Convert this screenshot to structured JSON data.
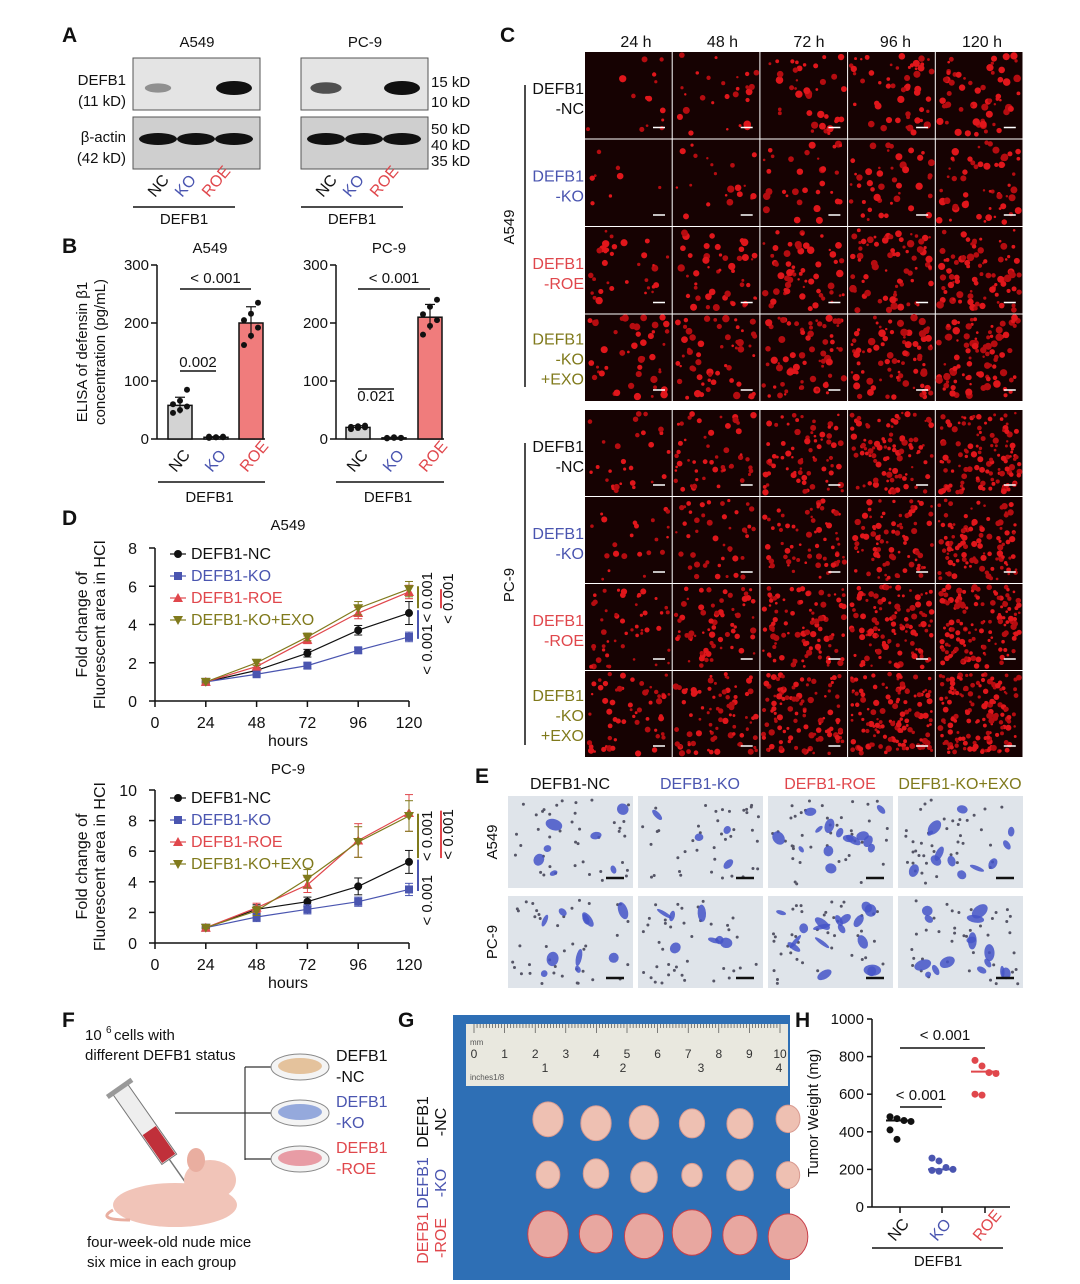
{
  "panels": {
    "A": "A",
    "B": "B",
    "C": "C",
    "D": "D",
    "E": "E",
    "F": "F",
    "G": "G",
    "H": "H"
  },
  "colors": {
    "nc": "#111111",
    "ko": "#4a55b0",
    "roe": "#e0474c",
    "exo": "#807a1c",
    "bar_nc": "#d3d3d3",
    "bar_ko": "#b9c4e6",
    "bar_roe": "#f07c7c"
  },
  "blot": {
    "cell_lines": [
      "A549",
      "PC-9"
    ],
    "rows": [
      {
        "name": "DEFB1",
        "size": "(11 kD)"
      },
      {
        "name": "β-actin",
        "size": "(42 kD)"
      }
    ],
    "markers": [
      "15 kD",
      "10 kD",
      "50 kD",
      "40 kD",
      "35 kD"
    ],
    "lanes": [
      "NC",
      "KO",
      "ROE"
    ],
    "group": "DEFB1"
  },
  "fluor": {
    "times": [
      "24 h",
      "48 h",
      "72 h",
      "96 h",
      "120 h"
    ],
    "cell_lines": [
      "A549",
      "PC-9"
    ],
    "rows": [
      [
        "DEFB1",
        "-NC"
      ],
      [
        "DEFB1",
        "-KO"
      ],
      [
        "DEFB1",
        "-ROE"
      ],
      [
        "DEFB1",
        "-KO",
        "+EXO"
      ]
    ]
  },
  "invasion": {
    "columns": [
      "DEFB1-NC",
      "DEFB1-KO",
      "DEFB1-ROE",
      "DEFB1-KO+EXO"
    ],
    "rows": [
      "A549",
      "PC-9"
    ]
  },
  "schematic": {
    "cells_line1": "10",
    "cells_sup": "6",
    "cells_line1_rest": " cells with",
    "cells_line2": "different DEFB1 status",
    "groups": [
      [
        "DEFB1",
        "-NC"
      ],
      [
        "DEFB1",
        "-KO"
      ],
      [
        "DEFB1",
        "-ROE"
      ]
    ],
    "mice_line1": "four-week-old nude mice",
    "mice_line2": "six mice in each group"
  },
  "photo": {
    "ruler_cm": [
      "0",
      "1",
      "2",
      "3",
      "4",
      "5",
      "6",
      "7",
      "8",
      "9",
      "10"
    ],
    "ruler_in": [
      "1",
      "2",
      "3",
      "4"
    ],
    "ruler_mm": "mm",
    "ruler_inch": "inches1/8",
    "rows": [
      [
        "DEFB1",
        "-NC"
      ],
      [
        "DEFB1",
        "-KO"
      ],
      [
        "DEFB1",
        "-ROE"
      ]
    ]
  },
  "chart_data": [
    {
      "id": "B-A549",
      "type": "bar",
      "title": "A549",
      "ylabel": [
        "ELISA of defensin β1",
        "concentration (pg/mL)"
      ],
      "categories": [
        "NC",
        "KO",
        "ROE"
      ],
      "group_label": "DEFB1",
      "ylim": [
        0,
        300
      ],
      "yticks": [
        "0",
        "100",
        "200",
        "300"
      ],
      "means": [
        58,
        3,
        200
      ],
      "sd": [
        14,
        1,
        28
      ],
      "points": [
        [
          45,
          50,
          56,
          60,
          66,
          85
        ],
        [
          2,
          3,
          3,
          4,
          3,
          4
        ],
        [
          162,
          178,
          192,
          205,
          216,
          235
        ]
      ],
      "comparisons": [
        {
          "pair": [
            "NC",
            "KO"
          ],
          "p": "0.002"
        },
        {
          "pair": [
            "NC",
            "ROE"
          ],
          "p": "< 0.001"
        }
      ]
    },
    {
      "id": "B-PC9",
      "type": "bar",
      "title": "PC-9",
      "ylabel": [],
      "categories": [
        "NC",
        "KO",
        "ROE"
      ],
      "group_label": "DEFB1",
      "ylim": [
        0,
        300
      ],
      "yticks": [
        "0",
        "100",
        "200",
        "300"
      ],
      "means": [
        20,
        2,
        210
      ],
      "sd": [
        3,
        1,
        22
      ],
      "points": [
        [
          17,
          19,
          20,
          21,
          22,
          23
        ],
        [
          1,
          2,
          2,
          2,
          3,
          2
        ],
        [
          180,
          195,
          205,
          215,
          228,
          240
        ]
      ],
      "comparisons": [
        {
          "pair": [
            "NC",
            "KO"
          ],
          "p": "0.021"
        },
        {
          "pair": [
            "NC",
            "ROE"
          ],
          "p": "< 0.001"
        }
      ]
    },
    {
      "id": "D-A549",
      "type": "line",
      "title": "A549",
      "xlabel": "hours",
      "ylabel": [
        "Fold change of",
        "Fluorescent area in HCI"
      ],
      "x": [
        24,
        48,
        72,
        96,
        120
      ],
      "xticks": [
        "0",
        "24",
        "48",
        "72",
        "96",
        "120"
      ],
      "xlim": [
        0,
        120
      ],
      "ylim": [
        0,
        8
      ],
      "yticks": [
        "0",
        "2",
        "4",
        "6",
        "8"
      ],
      "series": [
        {
          "name": "DEFB1-NC",
          "key": "nc",
          "marker": "circle",
          "values": [
            1,
            1.6,
            2.5,
            3.7,
            4.6
          ],
          "err": [
            0.05,
            0.15,
            0.2,
            0.25,
            0.6
          ]
        },
        {
          "name": "DEFB1-KO",
          "key": "ko",
          "marker": "square",
          "values": [
            1,
            1.4,
            1.85,
            2.65,
            3.35
          ],
          "err": [
            0.05,
            0.1,
            0.15,
            0.15,
            0.25
          ]
        },
        {
          "name": "DEFB1-ROE",
          "key": "roe",
          "marker": "triangle",
          "values": [
            1,
            1.8,
            3.2,
            4.6,
            5.7
          ],
          "err": [
            0.05,
            0.15,
            0.2,
            0.3,
            0.35
          ]
        },
        {
          "name": "DEFB1-KO+EXO",
          "key": "exo",
          "marker": "triangle-down",
          "values": [
            1,
            2.0,
            3.35,
            4.85,
            5.85
          ],
          "err": [
            0.05,
            0.15,
            0.2,
            0.35,
            0.4
          ]
        }
      ],
      "comparisons": [
        {
          "pair": [
            "DEFB1-KO+EXO",
            "DEFB1-NC"
          ],
          "key": "exo",
          "p": "< 0.001"
        },
        {
          "pair": [
            "DEFB1-NC",
            "DEFB1-KO"
          ],
          "key": "ko",
          "p": "< 0.001"
        },
        {
          "pair": [
            "DEFB1-ROE",
            "DEFB1-NC"
          ],
          "key": "roe",
          "p": "< 0.001"
        }
      ]
    },
    {
      "id": "D-PC9",
      "type": "line",
      "title": "PC-9",
      "xlabel": "hours",
      "ylabel": [
        "Fold change of",
        "Fluorescent area in HCI"
      ],
      "x": [
        24,
        48,
        72,
        96,
        120
      ],
      "xticks": [
        "0",
        "24",
        "48",
        "72",
        "96",
        "120"
      ],
      "xlim": [
        0,
        120
      ],
      "ylim": [
        0,
        10
      ],
      "yticks": [
        "0",
        "2",
        "4",
        "6",
        "8",
        "10"
      ],
      "series": [
        {
          "name": "DEFB1-NC",
          "key": "nc",
          "marker": "circle",
          "values": [
            1,
            2.2,
            2.7,
            3.7,
            5.3
          ],
          "err": [
            0.05,
            0.3,
            0.3,
            0.55,
            0.75
          ]
        },
        {
          "name": "DEFB1-KO",
          "key": "ko",
          "marker": "square",
          "values": [
            1,
            1.7,
            2.2,
            2.7,
            3.5
          ],
          "err": [
            0.05,
            0.3,
            0.3,
            0.3,
            0.4
          ]
        },
        {
          "name": "DEFB1-ROE",
          "key": "roe",
          "marker": "triangle",
          "values": [
            1,
            2.3,
            3.8,
            6.7,
            8.5
          ],
          "err": [
            0.05,
            0.3,
            0.5,
            1.1,
            1.2
          ]
        },
        {
          "name": "DEFB1-KO+EXO",
          "key": "exo",
          "marker": "triangle-down",
          "values": [
            1,
            2.1,
            4.2,
            6.6,
            8.3
          ],
          "err": [
            0.05,
            0.3,
            0.6,
            1.0,
            1.0
          ]
        }
      ],
      "comparisons": [
        {
          "pair": [
            "DEFB1-KO+EXO",
            "DEFB1-NC"
          ],
          "key": "exo",
          "p": "< 0.001"
        },
        {
          "pair": [
            "DEFB1-NC",
            "DEFB1-KO"
          ],
          "key": "ko",
          "p": "< 0.001"
        },
        {
          "pair": [
            "DEFB1-ROE",
            "DEFB1-NC"
          ],
          "key": "roe",
          "p": "< 0.001"
        }
      ]
    },
    {
      "id": "H",
      "type": "scatter",
      "ylabel": "Tumor Weight (mg)",
      "categories": [
        "NC",
        "KO",
        "ROE"
      ],
      "group_label": "DEFB1",
      "ylim": [
        0,
        1000
      ],
      "yticks": [
        "0",
        "200",
        "400",
        "600",
        "800",
        "1000"
      ],
      "values": [
        [
          480,
          470,
          460,
          455,
          410,
          360
        ],
        [
          260,
          245,
          210,
          200,
          195,
          190
        ],
        [
          780,
          750,
          715,
          710,
          600,
          595
        ]
      ],
      "medians": [
        460,
        200,
        720
      ],
      "comparisons": [
        {
          "pair": [
            "NC",
            "KO"
          ],
          "p": "< 0.001"
        },
        {
          "pair": [
            "NC",
            "ROE"
          ],
          "p": "< 0.001"
        }
      ]
    }
  ]
}
